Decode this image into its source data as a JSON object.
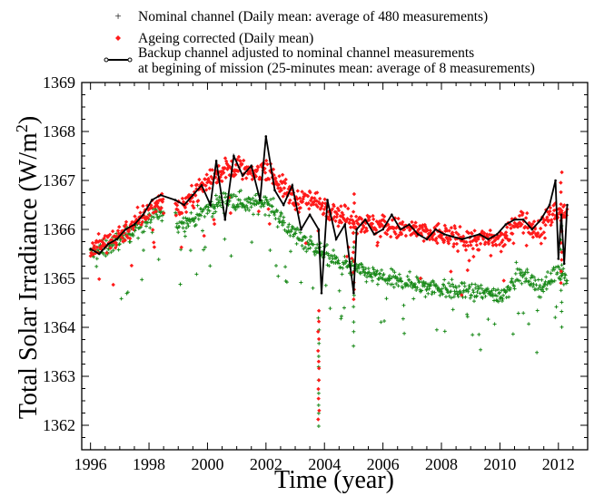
{
  "chart_data": {
    "type": "scatter",
    "title": "",
    "xlabel": "Time (year)",
    "ylabel_main": "Total Solar Irradiance (W/m",
    "ylabel_sup": "2",
    "ylabel_close": ")",
    "xlim": [
      1995.7,
      2013.0
    ],
    "ylim": [
      1361.5,
      1369.0
    ],
    "x_ticks": [
      1996,
      1998,
      2000,
      2002,
      2004,
      2006,
      2008,
      2010,
      2012
    ],
    "y_ticks": [
      1362,
      1363,
      1364,
      1365,
      1366,
      1367,
      1368,
      1369
    ],
    "minor_x_step": 0.5,
    "minor_y_step": 0.25,
    "grid": false,
    "legend_position": "top",
    "legend": [
      {
        "label": "Nominal channel (Daily mean: average of 480 measurements)",
        "marker": "plus",
        "color": "#1a8a1a"
      },
      {
        "label": "Ageing corrected  (Daily mean)",
        "marker": "diamond",
        "color": "#ff1a1a"
      },
      {
        "label": "Backup channel  adjusted to nominal channel measurements",
        "label2": " at  begining of mission (25-minutes mean: average of 8 measurements)",
        "marker": "line-circle",
        "color": "#000000"
      }
    ],
    "series": [
      {
        "name": "Nominal channel (Daily mean: average of 480 measurements)",
        "color": "#1a8a1a",
        "x": [
          1996.0,
          1996.5,
          1997.0,
          1997.5,
          1998.0,
          1998.4,
          1999.0,
          1999.5,
          2000.0,
          2000.5,
          2001.0,
          2001.5,
          2002.0,
          2002.5,
          2003.0,
          2003.5,
          2004.0,
          2004.5,
          2005.0,
          2005.5,
          2006.0,
          2006.5,
          2007.0,
          2007.5,
          2008.0,
          2008.5,
          2009.0,
          2009.5,
          2010.0,
          2010.3,
          2010.6,
          2011.0,
          2011.3,
          2011.6,
          2012.0,
          2012.3
        ],
        "y": [
          1365.5,
          1365.6,
          1365.8,
          1366.0,
          1366.2,
          1366.3,
          1366.1,
          1366.2,
          1366.4,
          1366.6,
          1366.6,
          1366.5,
          1366.6,
          1366.2,
          1365.9,
          1365.7,
          1365.5,
          1365.3,
          1365.2,
          1365.1,
          1365.0,
          1364.95,
          1364.9,
          1364.85,
          1364.8,
          1364.75,
          1364.7,
          1364.7,
          1364.65,
          1364.8,
          1365.1,
          1365.0,
          1364.8,
          1364.9,
          1365.2,
          1365.0
        ],
        "spread": 0.18
      },
      {
        "name": "Ageing corrected  (Daily mean)",
        "color": "#ff1a1a",
        "x": [
          1996.0,
          1996.5,
          1997.0,
          1997.5,
          1998.0,
          1998.4,
          1999.0,
          1999.5,
          2000.0,
          2000.5,
          2001.0,
          2001.5,
          2002.0,
          2002.5,
          2003.0,
          2003.5,
          2004.0,
          2004.5,
          2005.0,
          2005.5,
          2006.0,
          2006.5,
          2007.0,
          2007.5,
          2008.0,
          2008.5,
          2009.0,
          2009.5,
          2010.0,
          2010.3,
          2010.6,
          2011.0,
          2011.3,
          2011.6,
          2012.0,
          2012.3
        ],
        "y": [
          1365.6,
          1365.7,
          1365.9,
          1366.1,
          1366.4,
          1366.6,
          1366.4,
          1366.7,
          1367.0,
          1367.2,
          1367.3,
          1367.1,
          1367.3,
          1366.9,
          1366.6,
          1366.6,
          1366.5,
          1366.3,
          1366.2,
          1366.1,
          1366.1,
          1366.0,
          1366.0,
          1365.9,
          1365.9,
          1365.85,
          1365.8,
          1365.8,
          1365.75,
          1365.9,
          1366.2,
          1366.1,
          1366.0,
          1366.2,
          1366.4,
          1366.3
        ],
        "spread": 0.22
      },
      {
        "name": "Backup channel  adjusted to nominal channel measurements at  begining of mission (25-minutes mean: average of 8 measurements)",
        "color": "#000000",
        "x": [
          1996.0,
          1996.3,
          1996.6,
          1996.9,
          1997.2,
          1997.5,
          1997.8,
          1998.1,
          1998.4,
          1998.9,
          1999.2,
          1999.5,
          1999.8,
          2000.1,
          2000.3,
          2000.6,
          2000.9,
          2001.2,
          2001.5,
          2001.8,
          2002.0,
          2002.3,
          2002.6,
          2002.9,
          2003.2,
          2003.5,
          2003.8,
          2003.9,
          2004.1,
          2004.4,
          2004.7,
          2005.0,
          2005.1,
          2005.4,
          2005.7,
          2006.0,
          2006.3,
          2006.6,
          2006.9,
          2007.2,
          2007.5,
          2007.8,
          2008.1,
          2008.4,
          2008.7,
          2009.0,
          2009.3,
          2009.6,
          2009.9,
          2010.2,
          2010.5,
          2010.8,
          2011.1,
          2011.4,
          2011.7,
          2011.9,
          2012.0,
          2012.1,
          2012.2,
          2012.3
        ],
        "y": [
          1365.6,
          1365.5,
          1365.7,
          1365.8,
          1366.0,
          1366.1,
          1366.3,
          1366.6,
          1366.7,
          1366.6,
          1366.5,
          1366.7,
          1366.9,
          1366.5,
          1367.4,
          1366.2,
          1367.5,
          1367.1,
          1367.3,
          1366.6,
          1367.9,
          1366.8,
          1366.5,
          1366.9,
          1366.0,
          1366.3,
          1366.0,
          1364.7,
          1366.6,
          1365.8,
          1366.1,
          1364.7,
          1366.0,
          1366.2,
          1365.9,
          1366.0,
          1366.3,
          1366.0,
          1366.1,
          1365.9,
          1365.8,
          1366.0,
          1365.9,
          1365.85,
          1365.8,
          1365.85,
          1365.9,
          1365.8,
          1365.9,
          1366.1,
          1366.2,
          1366.2,
          1366.0,
          1366.2,
          1366.5,
          1367.0,
          1365.4,
          1366.3,
          1365.3,
          1366.5
        ]
      }
    ],
    "notable_dips": [
      {
        "x": 2003.8,
        "nominal_min": 1361.9,
        "ageing_min": 1362.1
      },
      {
        "x": 2005.0,
        "nominal_min": 1363.6,
        "ageing_min": 1364.5
      },
      {
        "x": 2012.1,
        "nominal_min": 1364.0,
        "ageing_min": 1364.9
      }
    ]
  }
}
